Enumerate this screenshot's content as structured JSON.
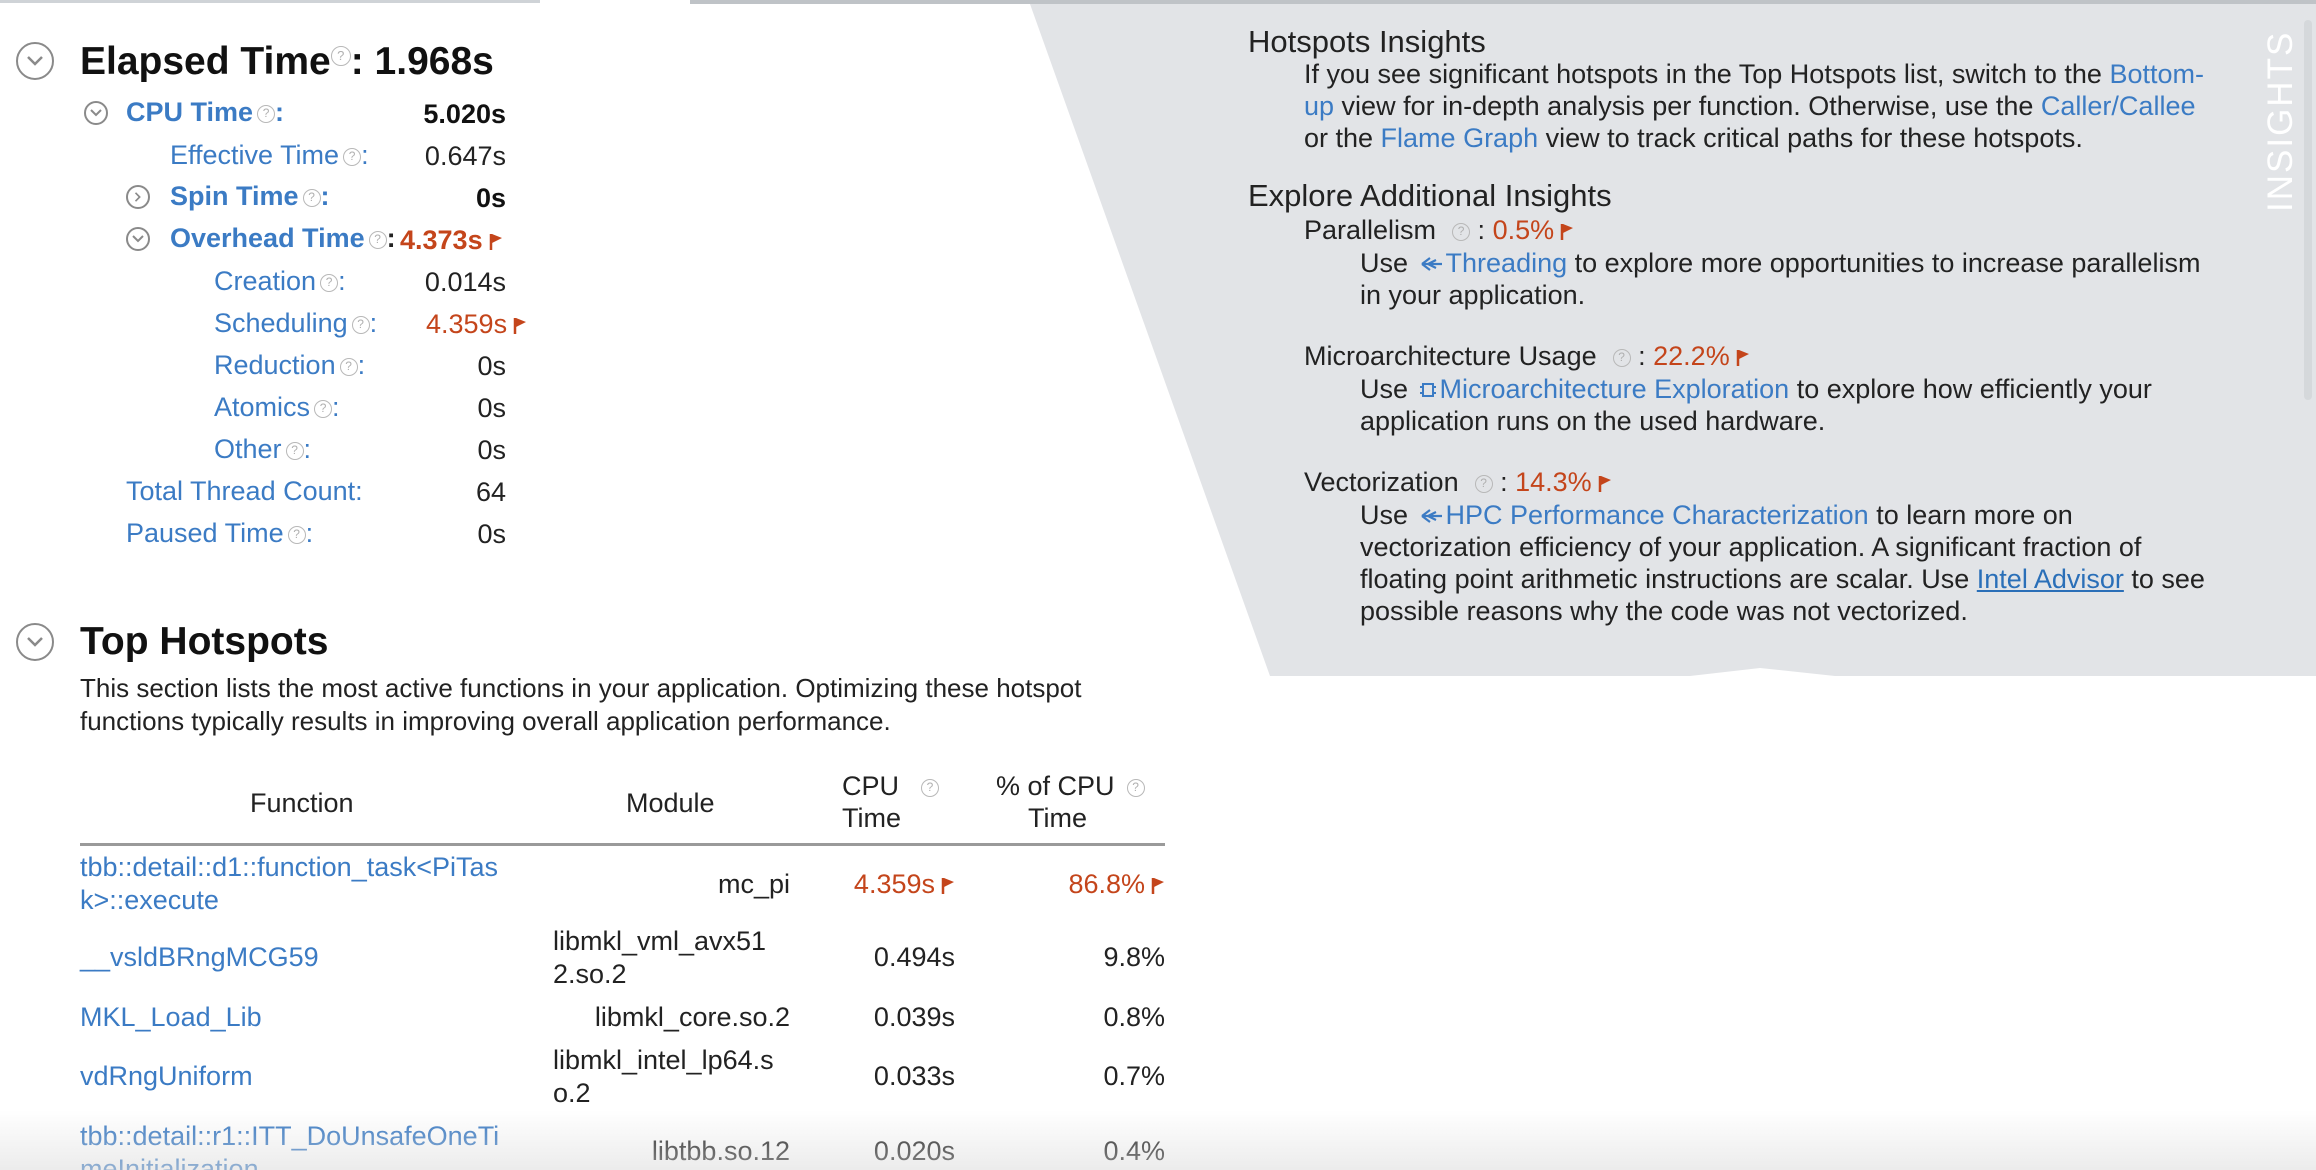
{
  "elapsed": {
    "title": "Elapsed Time",
    "value": ": 1.968s",
    "help": "?"
  },
  "metrics": {
    "cpu_time": {
      "label": "CPU Time",
      "value": "5.020s"
    },
    "effective_time": {
      "label": "Effective Time",
      "value": "0.647s"
    },
    "spin_time": {
      "label": "Spin Time",
      "value": "0s"
    },
    "overhead_time": {
      "label": "Overhead Time",
      "value": "4.373s"
    },
    "creation": {
      "label": "Creation",
      "value": "0.014s"
    },
    "scheduling": {
      "label": "Scheduling",
      "value": "4.359s"
    },
    "reduction": {
      "label": "Reduction",
      "value": "0s"
    },
    "atomics": {
      "label": "Atomics",
      "value": "0s"
    },
    "other": {
      "label": "Other",
      "value": "0s"
    },
    "total_thread_count": {
      "label": "Total Thread Count:",
      "value": "64"
    },
    "paused_time": {
      "label": "Paused Time",
      "value": "0s"
    }
  },
  "hotspots": {
    "title": "Top Hotspots",
    "description_line1": "This section lists the most active functions in your application. Optimizing these hotspot",
    "description_line2": "functions typically results in improving overall application performance.",
    "columns": {
      "function": "Function",
      "module": "Module",
      "cpu_l1": "CPU",
      "cpu_l2": "Time",
      "pct_l1": "% of CPU",
      "pct_l2": "Time"
    },
    "rows": [
      {
        "fn1": "tbb::detail::d1::function_task<PiTas",
        "fn2": "k>::execute",
        "mod1": "mc_pi",
        "mod2": "",
        "cpu": "4.359s",
        "pct": "86.8%"
      },
      {
        "fn1": "__vsldBRngMCG59",
        "fn2": "",
        "mod1": "libmkl_vml_avx51",
        "mod2": "2.so.2",
        "cpu": "0.494s",
        "pct": "9.8%"
      },
      {
        "fn1": "MKL_Load_Lib",
        "fn2": "",
        "mod1": "libmkl_core.so.2",
        "mod2": "",
        "cpu": "0.039s",
        "pct": "0.8%"
      },
      {
        "fn1": "vdRngUniform",
        "fn2": "",
        "mod1": "libmkl_intel_lp64.s",
        "mod2": "o.2",
        "cpu": "0.033s",
        "pct": "0.7%"
      },
      {
        "fn1": "tbb::detail::r1::ITT_DoUnsafeOneTi",
        "fn2": "meInitialization",
        "mod1": "libtbb.so.12",
        "mod2": "",
        "cpu": "0.020s",
        "pct": "0.4%"
      }
    ]
  },
  "insights": {
    "vertical_label": "INSIGHTS",
    "hotspots_title": "Hotspots Insights",
    "hs_l1_a": "If you see significant hotspots in the Top Hotspots list, switch to the ",
    "hs_l1_link": "Bottom-",
    "hs_l2_link": "up",
    "hs_l2_b": " view for in-depth analysis per function. Otherwise, use the ",
    "hs_l2_link2": "Caller/Callee",
    "hs_l3_a": "or the ",
    "hs_l3_link": "Flame Graph",
    "hs_l3_b": " view to track critical paths for these hotspots.",
    "explore_title": "Explore Additional Insights",
    "parallelism_label": "Parallelism",
    "parallelism_value": "0.5%",
    "par_use": "Use ",
    "par_link": "Threading",
    "par_rest": " to explore more opportunities to increase parallelism",
    "par_l2": "in your application.",
    "micro_label": "Microarchitecture Usage",
    "micro_value": "22.2%",
    "micro_use": "Use ",
    "micro_link": "Microarchitecture Exploration",
    "micro_rest": " to explore how efficiently your",
    "micro_l2": "application runs on the used hardware.",
    "vec_label": "Vectorization",
    "vec_value": "14.3%",
    "vec_use": "Use ",
    "vec_link": "HPC Performance Characterization",
    "vec_rest": " to learn more on",
    "vec_l2": "vectorization efficiency of your application. A significant fraction of",
    "vec_l3_a": "floating point arithmetic instructions are scalar. Use ",
    "vec_l3_link": "Intel Advisor",
    "vec_l3_b": " to see",
    "vec_l4": "possible reasons why the code was not vectorized.",
    "sep": " : "
  },
  "colors": {
    "link": "#3b7bc4",
    "warning": "#c4451b",
    "panel": "#e3e5e8"
  },
  "icons": [
    "chevron-down-icon",
    "help-icon",
    "flag-icon",
    "threading-icon",
    "chip-icon"
  ]
}
